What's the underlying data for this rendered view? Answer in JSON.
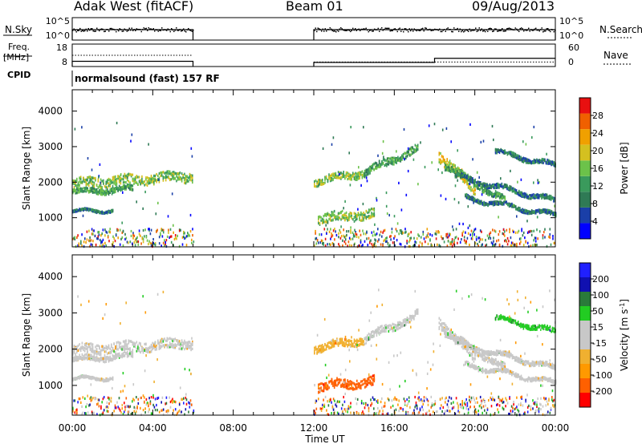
{
  "header": {
    "title": "Adak West (fitACF)",
    "beam": "Beam 01",
    "date": "09/Aug/2013"
  },
  "side_labels": {
    "nsky": "N.Sky",
    "freq_line1": "Freq.",
    "freq_line2": "[MHz]",
    "cpid": "CPID",
    "nsearch": "N.Search",
    "nave": "Nave"
  },
  "cpid_text": "normalsound (fast) 157 RF",
  "noise_axis_ticks": [
    "10^5",
    "10^0"
  ],
  "freq_axis_ticks": [
    "18",
    "8"
  ],
  "nave_axis_ticks": [
    "60",
    "0"
  ],
  "colors": {
    "power_scale": [
      "#0000ff",
      "#1a3fa8",
      "#2f7a55",
      "#3a9a5c",
      "#6cc24a",
      "#d4c020",
      "#f0a000",
      "#f06000",
      "#e81010"
    ],
    "velocity_scale": [
      "#ff0000",
      "#ff6000",
      "#ff9900",
      "#f0b030",
      "#c8c8c8",
      "#c8c8c8",
      "#22cc22",
      "#2a7a3a",
      "#1010b0",
      "#2020ff"
    ]
  },
  "chart_data": [
    {
      "type": "line",
      "panel": "noise",
      "y_axis_ticks": [
        "10^5",
        "10^0"
      ],
      "x_range_hours": [
        0,
        24
      ],
      "x_tick_labels": [
        "00:00",
        "04:00",
        "08:00",
        "12:00",
        "16:00",
        "20:00",
        "00:00"
      ],
      "series": [
        {
          "name": "N.Sky",
          "segments_hours": [
            [
              0,
              6
            ],
            [
              12,
              24
            ]
          ]
        },
        {
          "name": "N.Search",
          "segments_hours": [
            [
              12,
              24
            ]
          ]
        }
      ]
    },
    {
      "type": "line",
      "panel": "frequency",
      "ylabel": "Freq. [MHz]",
      "ylim": [
        8,
        18
      ],
      "y2lim": [
        0,
        60
      ],
      "series": [
        {
          "name": "Freq.",
          "segments": [
            {
              "x": [
                0,
                6
              ],
              "y": 13
            },
            {
              "x": [
                12,
                24
              ],
              "y": 10
            }
          ]
        },
        {
          "name": "Nave",
          "segments": [
            {
              "x": [
                0,
                6
              ],
              "y": 14
            },
            {
              "x": [
                12,
                18
              ],
              "y": 11
            },
            {
              "x": [
                18,
                24
              ],
              "y": 22
            }
          ]
        }
      ]
    },
    {
      "type": "heatmap",
      "panel": "power",
      "xlabel": "Time UT",
      "ylabel": "Slant Range [km]",
      "y_tick_labels": [
        "1000",
        "2000",
        "3000",
        "4000"
      ],
      "ylim": [
        180,
        4600
      ],
      "colorbar_label": "Power [dB]",
      "colorbar_ticks": [
        "4",
        "8",
        "12",
        "16",
        "20",
        "24",
        "28"
      ],
      "data_gaps_hours": [
        [
          6,
          12
        ]
      ]
    },
    {
      "type": "heatmap",
      "panel": "velocity",
      "xlabel": "Time UT",
      "ylabel": "Slant Range [km]",
      "y_tick_labels": [
        "1000",
        "2000",
        "3000",
        "4000"
      ],
      "ylim": [
        180,
        4600
      ],
      "colorbar_label": "Velocity [m s",
      "colorbar_label_exp": "-1",
      "colorbar_label_end": "]",
      "colorbar_ticks": [
        "-200",
        "-100",
        "-50",
        "-15",
        "15",
        "50",
        "100",
        "200"
      ],
      "data_gaps_hours": [
        [
          6,
          12
        ]
      ]
    }
  ],
  "xaxis": {
    "label": "Time UT",
    "ticks": [
      "00:00",
      "04:00",
      "08:00",
      "12:00",
      "16:00",
      "20:00",
      "00:00"
    ]
  }
}
